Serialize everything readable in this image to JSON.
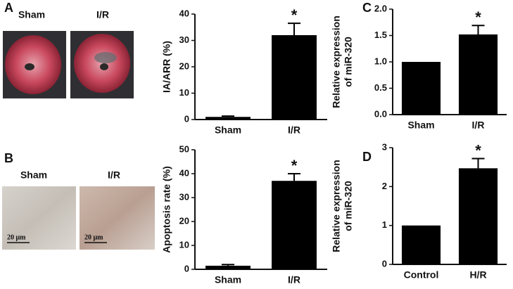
{
  "panel_labels": [
    "A",
    "B",
    "C",
    "D"
  ],
  "images": [
    {
      "label": "Sham"
    },
    {
      "label": "I/R"
    },
    {
      "label": "Sham",
      "scale_bar": "20 μm"
    },
    {
      "label": "I/R",
      "scale_bar": "20 μm"
    }
  ],
  "chart_data": [
    {
      "type": "bar",
      "ylabel": [
        "IA/ARR (%)"
      ],
      "categories": [
        "Sham",
        "I/R"
      ],
      "values": [
        1,
        32
      ],
      "errors": [
        0.3,
        4.5
      ],
      "color": "#000000",
      "ylim": [
        0,
        40
      ],
      "yticks": [
        0,
        10,
        20,
        30,
        40
      ],
      "annotations": [
        {
          "text": "*",
          "x": "I/R"
        }
      ]
    },
    {
      "type": "bar",
      "ylabel": [
        "Apoptosis rate (%)"
      ],
      "categories": [
        "Sham",
        "I/R"
      ],
      "values": [
        1.5,
        37
      ],
      "errors": [
        0.5,
        3
      ],
      "color": "#000000",
      "ylim": [
        0,
        50
      ],
      "yticks": [
        0,
        10,
        20,
        30,
        40,
        50
      ],
      "annotations": [
        {
          "text": "*",
          "x": "I/R"
        }
      ]
    },
    {
      "type": "bar",
      "ylabel": [
        "Relative expression",
        "of miR-320"
      ],
      "categories": [
        "Sham",
        "I/R"
      ],
      "values": [
        1.0,
        1.52
      ],
      "errors": [
        0,
        0.17
      ],
      "color": "#000000",
      "ylim": [
        0,
        2.0
      ],
      "yticks": [
        {
          "value": 0,
          "label": "0.0"
        },
        {
          "value": 0.5,
          "label": "0.5"
        },
        {
          "value": 1,
          "label": "1.0"
        },
        {
          "value": 1.5,
          "label": "1.5"
        },
        {
          "value": 2,
          "label": "2.0"
        }
      ],
      "annotations": [
        {
          "text": "*",
          "x": "I/R"
        }
      ]
    },
    {
      "type": "bar",
      "ylabel": [
        "Relative expression",
        "of miR-320"
      ],
      "categories": [
        "Control",
        "H/R"
      ],
      "values": [
        1,
        2.47
      ],
      "errors": [
        0,
        0.25
      ],
      "color": "#000000",
      "ylim": [
        0,
        3
      ],
      "yticks": [
        0,
        1,
        2,
        3
      ],
      "annotations": [
        {
          "text": "*",
          "x": "H/R"
        }
      ]
    }
  ]
}
